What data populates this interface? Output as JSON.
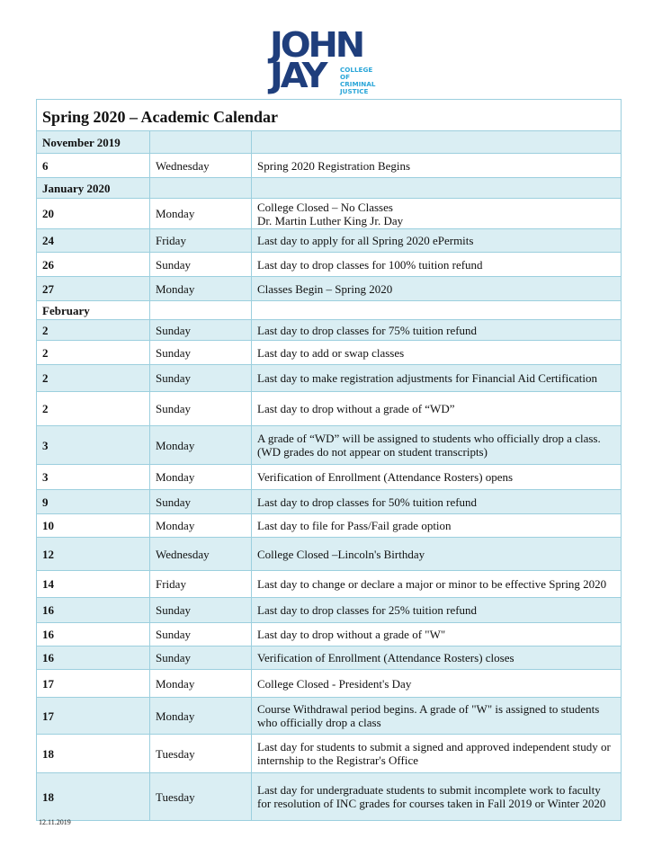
{
  "logo": {
    "line1": "JOHN",
    "line2": "JAY",
    "subtitle": [
      "COLLEGE",
      "OF",
      "CRIMINAL",
      "JUSTICE"
    ],
    "brand_color": "#1f3e7c",
    "accent_color": "#2aa6d8"
  },
  "title": "Spring 2020 – Academic Calendar",
  "rows": [
    {
      "date": "November 2019",
      "day": "",
      "event": "",
      "header": true
    },
    {
      "date": "6",
      "day": "Wednesday",
      "event": "Spring 2020 Registration Begins"
    },
    {
      "date": "January 2020",
      "day": "",
      "event": "",
      "header": true
    },
    {
      "date": "20",
      "day": "Monday",
      "event": "College Closed – No Classes\nDr. Martin Luther King Jr. Day"
    },
    {
      "date": "24",
      "day": "Friday",
      "event": "Last day to apply for all Spring 2020 ePermits"
    },
    {
      "date": "26",
      "day": "Sunday",
      "event": "Last day to drop classes for 100% tuition refund"
    },
    {
      "date": "27",
      "day": "Monday",
      "event": "Classes Begin – Spring 2020"
    },
    {
      "date": "February",
      "day": "",
      "event": "",
      "header": true
    },
    {
      "date": "2",
      "day": "Sunday",
      "event": "Last day to drop classes for 75% tuition refund"
    },
    {
      "date": "2",
      "day": "Sunday",
      "event": "Last day to add or swap classes"
    },
    {
      "date": "2",
      "day": "Sunday",
      "event": "Last day to make registration adjustments for Financial Aid Certification"
    },
    {
      "date": "2",
      "day": "Sunday",
      "event": "Last day to drop without a grade of “WD”"
    },
    {
      "date": "3",
      "day": "Monday",
      "event": "A grade of “WD” will be assigned to students who officially drop a class. (WD grades do not appear on student transcripts)"
    },
    {
      "date": "3",
      "day": "Monday",
      "event": "Verification of Enrollment (Attendance Rosters) opens"
    },
    {
      "date": "9",
      "day": "Sunday",
      "event": "Last day to drop classes for 50% tuition refund"
    },
    {
      "date": "10",
      "day": "Monday",
      "event": "Last day to file for Pass/Fail grade option"
    },
    {
      "date": "12",
      "day": "Wednesday",
      "event": "College Closed –Lincoln's Birthday"
    },
    {
      "date": "14",
      "day": "Friday",
      "event": "Last day to change or declare a major or minor to be effective Spring 2020"
    },
    {
      "date": "16",
      "day": "Sunday",
      "event": "Last day to drop classes for 25% tuition refund"
    },
    {
      "date": "16",
      "day": "Sunday",
      "event": "Last day to drop without a grade of \"W\""
    },
    {
      "date": "16",
      "day": "Sunday",
      "event": "Verification of Enrollment (Attendance Rosters) closes"
    },
    {
      "date": "17",
      "day": "Monday",
      "event": "College Closed - President's Day"
    },
    {
      "date": "17",
      "day": "Monday",
      "event": "Course Withdrawal period begins. A grade of \"W\" is assigned to students who officially drop a class"
    },
    {
      "date": "18",
      "day": "Tuesday",
      "event": "Last day for students to submit a signed and approved independent study or internship to the Registrar's Office"
    },
    {
      "date": "18",
      "day": "Tuesday",
      "event": "Last day for undergraduate students to submit incomplete work to faculty for resolution of INC grades for courses taken in Fall 2019 or Winter 2020"
    }
  ],
  "footer_date": "12.11.2019",
  "colors": {
    "row_shade": "#daeef3",
    "border": "#9ccfde"
  }
}
